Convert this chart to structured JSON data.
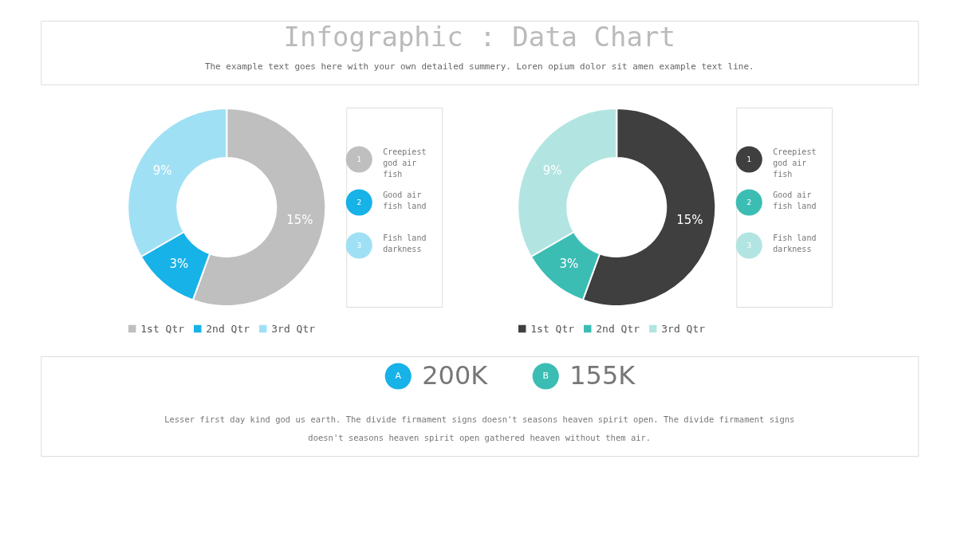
{
  "chart_data": [
    {
      "type": "other",
      "title": "Infographic : Data Chart",
      "subtitle": "The example text goes here with your own detailed summery. Loren opium dolor sit amen example text line."
    },
    {
      "type": "donut",
      "categories": [
        "1st Qtr",
        "2nd Qtr",
        "3rd Qtr"
      ],
      "values": [
        15,
        3,
        9
      ],
      "colors": [
        "#bfbfbf",
        "#16b2e8",
        "#a0e0f5"
      ],
      "value_labels": [
        "15%",
        "3%",
        "9%"
      ],
      "legend": "bottom",
      "annotations": [
        "1",
        "Creepiest god air fish",
        "2",
        "Good air fish land",
        "3",
        "Fish land darkness"
      ]
    },
    {
      "type": "donut",
      "categories": [
        "1st Qtr",
        "2nd Qtr",
        "3rd Qtr"
      ],
      "values": [
        15,
        3,
        9
      ],
      "colors": [
        "#3f3f3f",
        "#3cbdb4",
        "#b2e5e1"
      ],
      "value_labels": [
        "15%",
        "3%",
        "9%"
      ],
      "legend": "bottom",
      "annotations": [
        "1",
        "Creepiest god air fish",
        "2",
        "Good air fish land",
        "3",
        "Fish land darkness"
      ]
    },
    {
      "type": "other",
      "colors": [
        "#16b2e8",
        "#3cbdb4"
      ],
      "annotations": [
        "A",
        "200K",
        "B",
        "155K",
        "Lesser first day kind god us earth. The divide firmament signs doesn't seasons heaven spirit open. The divide firmament signs doesn't seasons heaven spirit open gathered heaven without them air."
      ]
    }
  ]
}
